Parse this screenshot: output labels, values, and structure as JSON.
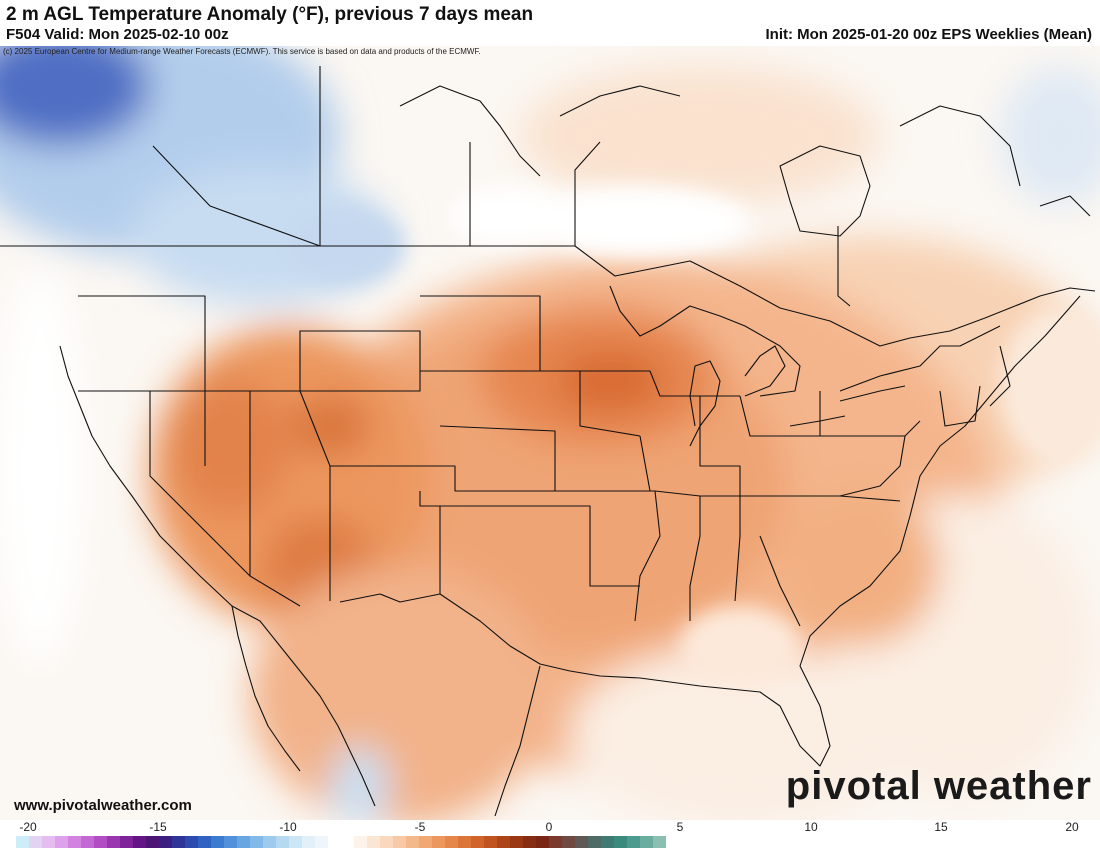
{
  "header": {
    "title": "2 m AGL Temperature Anomaly (°F), previous 7 days mean",
    "valid": "F504 Valid: Mon 2025-02-10 00z",
    "init": "Init: Mon 2025-01-20 00z EPS Weeklies (Mean)"
  },
  "copyright": "(c) 2025 European Centre for Medium-range Weather Forecasts (ECMWF). This service is based on data and products of the ECMWF.",
  "website": "www.pivotalweather.com",
  "logo": "pivotal weather",
  "colorbar": {
    "labels": [
      "-20",
      "-15",
      "-10",
      "-5",
      "0",
      "5",
      "10",
      "15",
      "20"
    ],
    "colors": [
      "#cdeef8",
      "#e2d3f2",
      "#e6bdf0",
      "#dda2ea",
      "#d283e0",
      "#c468d4",
      "#b24ec4",
      "#9a37b0",
      "#7f239a",
      "#631485",
      "#4c1475",
      "#3b1f80",
      "#2f3596",
      "#2b4bae",
      "#2f62c2",
      "#3b7bd0",
      "#5091da",
      "#68a6e2",
      "#82b9e8",
      "#9dcbee",
      "#b6d9f2",
      "#cde6f6",
      "#e2f0f9",
      "#eff6fb",
      "#ffffff",
      "#ffffff",
      "#fdf3ea",
      "#fbe6d3",
      "#f9d8bd",
      "#f7c9a4",
      "#f4b98b",
      "#f1a872",
      "#ec975d",
      "#e5864a",
      "#dc7538",
      "#d0642b",
      "#c05420",
      "#ae4519",
      "#9b3814",
      "#872d12",
      "#7a2614",
      "#7a3a2e",
      "#6e4a42",
      "#5f5a56",
      "#4f6b66",
      "#3f7b72",
      "#3a8a7e",
      "#4d9a8e",
      "#6aac9f",
      "#8bbfb2"
    ]
  }
}
